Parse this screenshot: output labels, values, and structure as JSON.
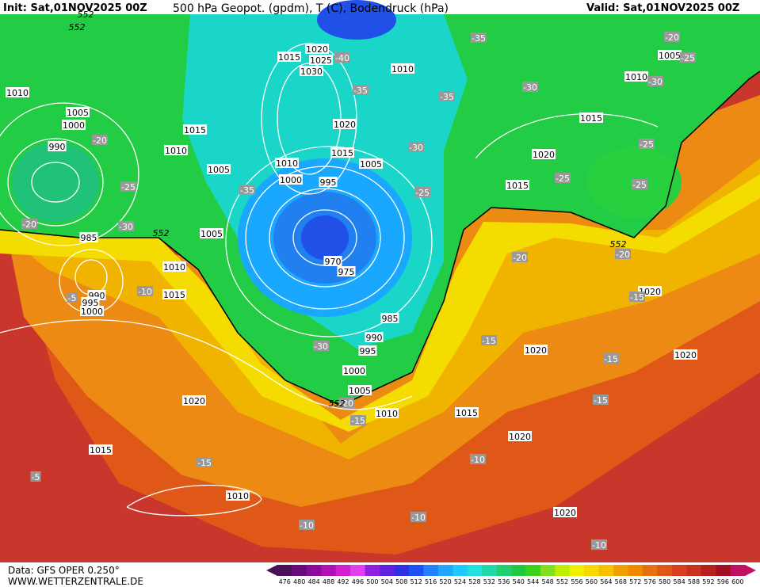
{
  "header": {
    "init": "Init: Sat,01NOV2025 00Z",
    "title": "500 hPa Geopot. (gpdm), T (C), Bodendruck (hPa)",
    "valid": "Valid: Sat,01NOV2025 00Z"
  },
  "footer": {
    "data": "Data: GFS OPER 0.250°",
    "site": "WWW.WETTERZENTRALE.DE"
  },
  "pressure_labels": [
    1020,
    1025,
    1015,
    1030,
    1010,
    1010,
    1005,
    1000,
    990,
    1015,
    1010,
    1020,
    1015,
    1010,
    1005,
    1000,
    995,
    1005,
    985,
    1005,
    1010,
    1015,
    990,
    995,
    1000,
    970,
    975,
    985,
    990,
    995,
    1000,
    1005,
    1010,
    1015,
    1020,
    1015,
    1010,
    1020,
    1020,
    1020,
    1020,
    1020,
    1015,
    1020,
    1015,
    1010,
    1005
  ],
  "temperature_labels": [
    -35,
    -40,
    -35,
    -35,
    -30,
    -30,
    -25,
    -20,
    -20,
    -25,
    -25,
    -25,
    -30,
    -25,
    -35,
    -25,
    -20,
    -30,
    -20,
    -20,
    -10,
    -5,
    -15,
    -30,
    -15,
    -15,
    -15,
    -15,
    -20,
    -15,
    -10,
    -10,
    -10,
    -10,
    -5
  ],
  "geopotential_labels": [
    552,
    552,
    552,
    552,
    552
  ],
  "colorbar": {
    "levels": [
      476,
      480,
      484,
      488,
      492,
      496,
      500,
      504,
      508,
      512,
      516,
      520,
      524,
      528,
      532,
      536,
      540,
      544,
      548,
      552,
      556,
      560,
      564,
      568,
      572,
      576,
      580,
      584,
      588,
      592,
      596,
      600
    ],
    "colors": [
      "#4b0f5a",
      "#6a0a7a",
      "#8a0a9a",
      "#b010b8",
      "#d020d0",
      "#e040f0",
      "#9020e0",
      "#6020e0",
      "#3030e8",
      "#2050f0",
      "#2080ff",
      "#20a8ff",
      "#20c8ff",
      "#20e0e0",
      "#20d8a8",
      "#20d070",
      "#20c840",
      "#40d020",
      "#80e020",
      "#c0f000",
      "#f0f000",
      "#f8d800",
      "#f8c000",
      "#f0a000",
      "#f08800",
      "#e87010",
      "#e05818",
      "#d84020",
      "#c83020",
      "#b82020",
      "#a01020",
      "#c01060"
    ]
  }
}
